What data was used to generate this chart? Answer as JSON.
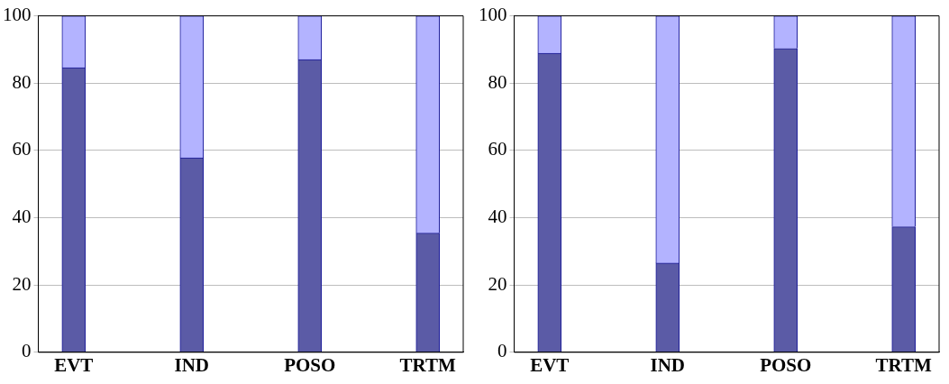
{
  "chart_data": [
    {
      "type": "bar",
      "stacked": true,
      "categories": [
        "EVT",
        "IND",
        "POSO",
        "TRTM"
      ],
      "series": [
        {
          "color": "#5b5ba6",
          "values": [
            84.6,
            57.8,
            87.0,
            35.4
          ]
        },
        {
          "color": "#b3b3ff",
          "values": [
            15.4,
            42.2,
            13.0,
            64.6
          ]
        }
      ],
      "ylim": [
        0,
        100
      ],
      "yticks": [
        0,
        20,
        40,
        60,
        80,
        100
      ],
      "grid": "y"
    },
    {
      "type": "bar",
      "stacked": true,
      "categories": [
        "EVT",
        "IND",
        "POSO",
        "TRTM"
      ],
      "series": [
        {
          "color": "#5b5ba6",
          "values": [
            88.9,
            26.5,
            90.3,
            37.3
          ]
        },
        {
          "color": "#b3b3ff",
          "values": [
            11.1,
            73.5,
            9.7,
            62.7
          ]
        }
      ],
      "ylim": [
        0,
        100
      ],
      "yticks": [
        0,
        20,
        40,
        60,
        80,
        100
      ],
      "grid": "y"
    }
  ]
}
